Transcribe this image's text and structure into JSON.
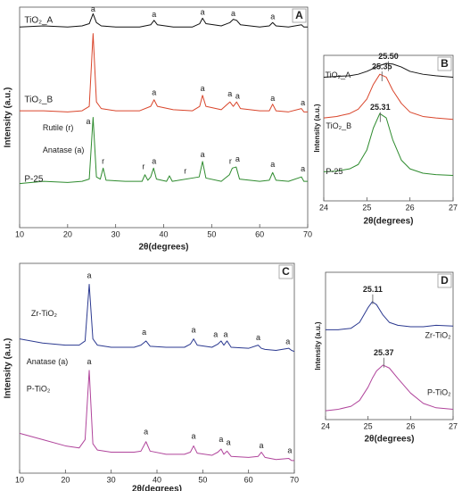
{
  "chart_data": [
    {
      "type": "line",
      "panel": "A",
      "xlabel": "2θ(degrees)",
      "ylabel": "Intensity (a.u.)",
      "xlim": [
        10,
        70
      ],
      "xticks": [
        10,
        20,
        30,
        40,
        50,
        60,
        70
      ],
      "ylim": [
        0,
        100
      ],
      "series": [
        {
          "name": "TiO₂_A",
          "color": "#111111",
          "x": [
            10,
            15,
            20,
            23,
            24.5,
            25.3,
            26,
            27,
            30,
            35,
            37.3,
            38,
            38.7,
            42,
            46,
            47.5,
            48.1,
            48.8,
            52,
            53.8,
            54.5,
            55.2,
            56,
            60,
            62,
            62.7,
            63.4,
            66,
            68.7,
            69.2,
            70
          ],
          "values": [
            91,
            91.5,
            91,
            91.5,
            92.5,
            97,
            93,
            91.5,
            91,
            91,
            92,
            94,
            92,
            91,
            91,
            92.5,
            95,
            92.5,
            91.5,
            93,
            94.5,
            94,
            92,
            91,
            91.5,
            93,
            91.5,
            91,
            92,
            91,
            91
          ]
        },
        {
          "name": "TiO₂_B",
          "color": "#d9452b",
          "x": [
            10,
            15,
            20,
            23,
            24.5,
            25.3,
            26,
            27,
            30,
            35,
            37.3,
            38,
            38.7,
            42,
            46,
            47.5,
            48.1,
            48.8,
            52,
            53.8,
            54.5,
            55.2,
            56,
            60,
            62,
            62.7,
            63.4,
            66,
            68.7,
            69.2,
            70
          ],
          "values": [
            53,
            53,
            52.5,
            53,
            55,
            88,
            57,
            54,
            53,
            53,
            55,
            58,
            55,
            53.5,
            53,
            55,
            60,
            55,
            53.5,
            57,
            55,
            57,
            54,
            53,
            53,
            56,
            53,
            52.5,
            54,
            52.5,
            52.5
          ]
        },
        {
          "name": "P-25",
          "color": "#2e8b2e",
          "x": [
            10,
            15,
            20,
            23,
            24.5,
            25.3,
            26,
            26.8,
            27.4,
            28,
            32,
            35.5,
            36.1,
            36.7,
            37.3,
            37.9,
            38.5,
            40.6,
            41.2,
            41.8,
            47.4,
            48.1,
            48.8,
            52,
            53.7,
            54.3,
            55.1,
            55.8,
            60,
            62,
            62.7,
            63.4,
            66,
            68.7,
            69.2,
            70
          ],
          "values": [
            20,
            21,
            20.5,
            21,
            22,
            50,
            23,
            22,
            27,
            21.5,
            21,
            21,
            24,
            21.5,
            23,
            27,
            22,
            21,
            23.5,
            21,
            23,
            30,
            22.5,
            21,
            24,
            27,
            27.5,
            22,
            21,
            21.5,
            25,
            21.5,
            21,
            23,
            21,
            21
          ]
        }
      ],
      "annotations": [
        {
          "text": "a",
          "x": 25.3,
          "y": 99
        },
        {
          "text": "a",
          "x": 38,
          "y": 96.5
        },
        {
          "text": "a",
          "x": 48.1,
          "y": 97.5
        },
        {
          "text": "a",
          "x": 54.5,
          "y": 97
        },
        {
          "text": "a",
          "x": 62.7,
          "y": 95.5
        },
        {
          "text": "a",
          "x": 69,
          "y": 94.5
        },
        {
          "text": "a",
          "x": 38,
          "y": 61
        },
        {
          "text": "a",
          "x": 48.1,
          "y": 63
        },
        {
          "text": "a",
          "x": 53.8,
          "y": 60.5
        },
        {
          "text": "a",
          "x": 55.4,
          "y": 59.5
        },
        {
          "text": "a",
          "x": 62.7,
          "y": 58.5
        },
        {
          "text": "a",
          "x": 69,
          "y": 56.5
        },
        {
          "text": "Rutile (r)",
          "x": 14.8,
          "y": 45
        },
        {
          "text": "Anatase (a)",
          "x": 14.8,
          "y": 35
        },
        {
          "text": "a",
          "x": 24.3,
          "y": 48
        },
        {
          "text": "r",
          "x": 27.4,
          "y": 30
        },
        {
          "text": "r",
          "x": 35.8,
          "y": 27.5
        },
        {
          "text": "a",
          "x": 38,
          "y": 30
        },
        {
          "text": "r",
          "x": 44.5,
          "y": 25.5
        },
        {
          "text": "a",
          "x": 48.1,
          "y": 33
        },
        {
          "text": "r",
          "x": 53.9,
          "y": 30
        },
        {
          "text": "a",
          "x": 55.4,
          "y": 31
        },
        {
          "text": "a",
          "x": 62.7,
          "y": 28.5
        },
        {
          "text": "a",
          "x": 69,
          "y": 26.5
        }
      ]
    },
    {
      "type": "line",
      "panel": "B",
      "xlabel": "2θ(degrees)",
      "ylabel": "Intensity (a.u.)",
      "xlim": [
        24,
        27
      ],
      "xticks": [
        24,
        25,
        26,
        27
      ],
      "ylim": [
        0,
        100
      ],
      "peak_markers": true,
      "series": [
        {
          "name": "TiO₂_A",
          "color": "#111111",
          "x": [
            24,
            24.3,
            24.6,
            24.8,
            25,
            25.15,
            25.3,
            25.45,
            25.6,
            25.8,
            26,
            26.3,
            26.6,
            27
          ],
          "values": [
            85,
            85.5,
            86,
            87,
            89,
            91,
            93,
            94.5,
            94,
            92,
            89,
            87,
            86,
            85
          ]
        },
        {
          "name": "TiO₂_B",
          "color": "#d9452b",
          "x": [
            24,
            24.3,
            24.6,
            24.8,
            25,
            25.15,
            25.3,
            25.45,
            25.6,
            25.8,
            26,
            26.3,
            26.6,
            27
          ],
          "values": [
            57,
            58,
            60,
            63,
            70,
            80,
            87,
            85,
            76,
            67,
            61,
            58,
            57,
            56
          ]
        },
        {
          "name": "P-25",
          "color": "#2e8b2e",
          "x": [
            24,
            24.3,
            24.6,
            24.8,
            25,
            25.15,
            25.3,
            25.45,
            25.6,
            25.8,
            26,
            26.3,
            26.6,
            27
          ],
          "values": [
            20,
            20.5,
            22,
            25,
            35,
            50,
            60,
            57,
            42,
            28,
            22,
            19,
            18,
            17.5
          ]
        }
      ],
      "annotations": [
        {
          "text": "25.50",
          "x": 25.5,
          "y": 99,
          "color": "#111111"
        },
        {
          "text": "25.35",
          "x": 25.35,
          "y": 92,
          "color": "#d9452b"
        },
        {
          "text": "25.31",
          "x": 25.31,
          "y": 64,
          "color": "#2e8b2e"
        }
      ]
    },
    {
      "type": "line",
      "panel": "C",
      "xlabel": "2θ(degrees)",
      "ylabel": "Intensity (a.u.)",
      "xlim": [
        10,
        70
      ],
      "xticks": [
        10,
        20,
        30,
        40,
        50,
        60,
        70
      ],
      "ylim": [
        0,
        100
      ],
      "series": [
        {
          "name": "Zr-TiO₂",
          "color": "#2b3990",
          "x": [
            10,
            15,
            20,
            23,
            24.3,
            25.2,
            26,
            27,
            30,
            35,
            36.5,
            37.6,
            38.5,
            42,
            46,
            47.3,
            48,
            48.8,
            52,
            53.3,
            54,
            54.6,
            55.3,
            56.2,
            60,
            62.1,
            62.8,
            63.6,
            66,
            68.8,
            69.4,
            70
          ],
          "values": [
            64,
            62,
            61,
            61,
            63,
            90,
            64,
            61,
            60,
            60,
            61,
            63,
            60.5,
            60,
            60,
            61.5,
            64,
            61,
            60,
            61.5,
            63,
            61,
            63,
            60,
            59.5,
            61,
            59.5,
            59,
            58.5,
            59.5,
            58.5,
            58
          ]
        },
        {
          "name": "P-TiO₂",
          "color": "#b0449b",
          "x": [
            10,
            15,
            20,
            23,
            24.3,
            25.2,
            26,
            27,
            30,
            35,
            36.5,
            37.6,
            38.5,
            42,
            46,
            47.3,
            48,
            48.8,
            52,
            53.3,
            54,
            54.6,
            55.3,
            56.2,
            60,
            62.1,
            62.8,
            63.6,
            66,
            68.8,
            69.4,
            70
          ],
          "values": [
            19,
            16,
            13,
            12,
            16,
            49,
            14,
            11,
            10,
            10,
            10.5,
            15,
            10.5,
            9,
            9,
            10,
            13,
            9.5,
            8.5,
            10,
            11.5,
            9,
            10.5,
            8,
            7.5,
            8,
            10,
            7.5,
            6.5,
            7,
            6,
            6
          ]
        }
      ],
      "annotations": [
        {
          "text": "a",
          "x": 25.2,
          "y": 94
        },
        {
          "text": "a",
          "x": 37.2,
          "y": 67
        },
        {
          "text": "a",
          "x": 48,
          "y": 68
        },
        {
          "text": "a",
          "x": 52.8,
          "y": 66
        },
        {
          "text": "a",
          "x": 55,
          "y": 66
        },
        {
          "text": "a",
          "x": 62.1,
          "y": 64.5
        },
        {
          "text": "a",
          "x": 68.6,
          "y": 62.5
        },
        {
          "text": "Anatase (a)",
          "x": 11.5,
          "y": 53
        },
        {
          "text": "a",
          "x": 25.2,
          "y": 53
        },
        {
          "text": "a",
          "x": 37.6,
          "y": 19.5
        },
        {
          "text": "a",
          "x": 48,
          "y": 17.5
        },
        {
          "text": "a",
          "x": 54,
          "y": 16
        },
        {
          "text": "a",
          "x": 55.6,
          "y": 14.5
        },
        {
          "text": "a",
          "x": 62.8,
          "y": 13
        },
        {
          "text": "a",
          "x": 69,
          "y": 10.5
        }
      ]
    },
    {
      "type": "line",
      "panel": "D",
      "xlabel": "2θ(degrees)",
      "ylabel": "Intensity (a.u.)",
      "xlim": [
        24,
        27
      ],
      "xticks": [
        24,
        25,
        26,
        27
      ],
      "ylim": [
        0,
        100
      ],
      "peak_markers": true,
      "series": [
        {
          "name": "Zr-TiO₂",
          "color": "#2b3990",
          "x": [
            24,
            24.3,
            24.6,
            24.8,
            25,
            25.1,
            25.2,
            25.35,
            25.5,
            25.7,
            26,
            26.3,
            26.6,
            27
          ],
          "values": [
            61,
            61,
            62,
            66,
            76,
            80,
            78,
            71,
            66,
            64,
            63,
            63,
            64,
            63.5
          ]
        },
        {
          "name": "P-TiO₂",
          "color": "#b0449b",
          "x": [
            24,
            24.3,
            24.6,
            24.8,
            25,
            25.1,
            25.2,
            25.35,
            25.5,
            25.7,
            26,
            26.3,
            26.6,
            27
          ],
          "values": [
            6,
            7,
            9,
            13,
            22,
            28,
            33,
            37,
            35,
            28,
            18,
            11,
            8,
            7
          ]
        }
      ],
      "annotations": [
        {
          "text": "25.11",
          "x": 25.11,
          "y": 88,
          "color": "#2b3990"
        },
        {
          "text": "25.37",
          "x": 25.37,
          "y": 45,
          "color": "#b0449b"
        }
      ]
    }
  ]
}
